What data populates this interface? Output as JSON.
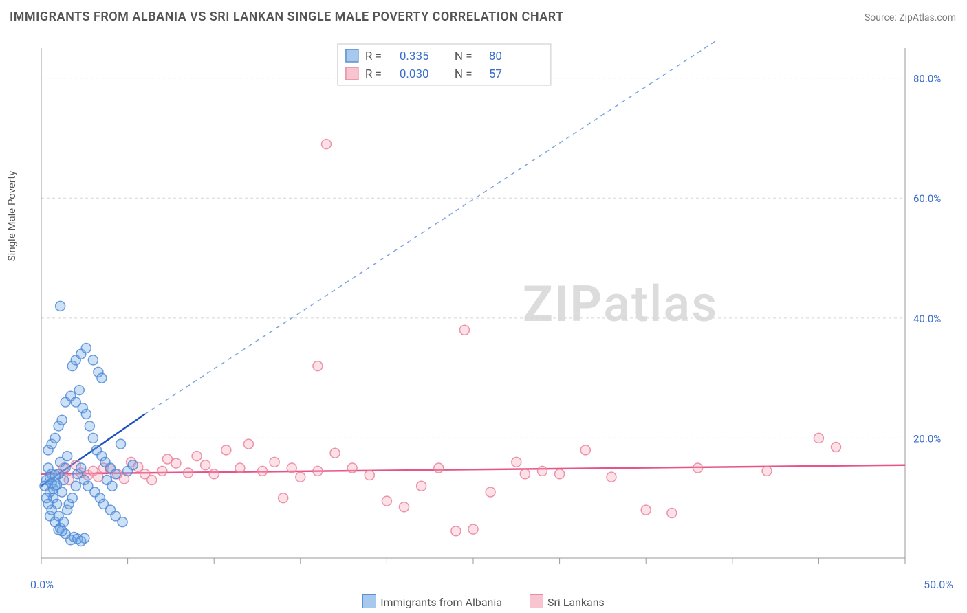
{
  "title": "IMMIGRANTS FROM ALBANIA VS SRI LANKAN SINGLE MALE POVERTY CORRELATION CHART",
  "source": "Source: ZipAtlas.com",
  "ylabel": "Single Male Poverty",
  "watermark": {
    "zip": "ZIP",
    "atlas": "atlas"
  },
  "chart": {
    "type": "scatter",
    "xlim": [
      0,
      50
    ],
    "ylim": [
      0,
      85
    ],
    "yticks": [
      20,
      40,
      60,
      80
    ],
    "ytick_labels": [
      "20.0%",
      "40.0%",
      "60.0%",
      "80.0%"
    ],
    "xticks": [
      0,
      5,
      10,
      15,
      20,
      25,
      30,
      35,
      40,
      45,
      50
    ],
    "xcorner_min": "0.0%",
    "xcorner_max": "50.0%",
    "marker_r": 7,
    "background_color": "#ffffff",
    "grid_color": "#d5d5d5",
    "series_a": {
      "label": "Immigrants from Albania",
      "R": "0.335",
      "N": "80",
      "color_fill": "#6fa8e6",
      "color_stroke": "#4a85d6",
      "trend_color": "#1b53b8",
      "trend": {
        "x1": 0,
        "y1": 12,
        "x2": 6,
        "y2": 24,
        "ext_x2": 40,
        "ext_y2": 88
      },
      "points": [
        [
          0.3,
          13
        ],
        [
          0.5,
          11
        ],
        [
          0.4,
          15
        ],
        [
          0.6,
          14
        ],
        [
          0.8,
          12
        ],
        [
          1.0,
          14
        ],
        [
          1.1,
          16
        ],
        [
          0.7,
          10
        ],
        [
          0.9,
          9
        ],
        [
          1.2,
          11
        ],
        [
          1.3,
          13
        ],
        [
          1.4,
          15
        ],
        [
          1.5,
          17
        ],
        [
          0.5,
          7
        ],
        [
          0.6,
          8
        ],
        [
          0.8,
          6
        ],
        [
          1.0,
          7
        ],
        [
          1.1,
          5
        ],
        [
          1.3,
          6
        ],
        [
          1.5,
          8
        ],
        [
          1.6,
          9
        ],
        [
          1.8,
          10
        ],
        [
          2.0,
          12
        ],
        [
          2.1,
          14
        ],
        [
          2.3,
          15
        ],
        [
          2.5,
          13
        ],
        [
          0.4,
          18
        ],
        [
          0.6,
          19
        ],
        [
          0.8,
          20
        ],
        [
          1.0,
          22
        ],
        [
          1.2,
          23
        ],
        [
          1.4,
          26
        ],
        [
          1.7,
          27
        ],
        [
          2.0,
          26
        ],
        [
          2.2,
          28
        ],
        [
          2.4,
          25
        ],
        [
          2.6,
          24
        ],
        [
          2.8,
          22
        ],
        [
          3.0,
          20
        ],
        [
          3.2,
          18
        ],
        [
          3.5,
          17
        ],
        [
          3.7,
          16
        ],
        [
          4.0,
          15
        ],
        [
          4.3,
          14
        ],
        [
          4.6,
          19
        ],
        [
          5.0,
          14.5
        ],
        [
          5.3,
          15.5
        ],
        [
          2.7,
          12
        ],
        [
          3.1,
          11
        ],
        [
          3.4,
          10
        ],
        [
          3.6,
          9
        ],
        [
          4.0,
          8
        ],
        [
          4.3,
          7
        ],
        [
          4.7,
          6
        ],
        [
          1.7,
          3
        ],
        [
          1.9,
          3.5
        ],
        [
          2.1,
          3.2
        ],
        [
          2.3,
          2.8
        ],
        [
          2.5,
          3.3
        ],
        [
          1.4,
          4
        ],
        [
          1.2,
          4.5
        ],
        [
          1.0,
          4.7
        ],
        [
          1.8,
          32
        ],
        [
          2.0,
          33
        ],
        [
          2.3,
          34
        ],
        [
          2.6,
          35
        ],
        [
          3.0,
          33
        ],
        [
          3.3,
          31
        ],
        [
          3.5,
          30
        ],
        [
          1.1,
          42
        ],
        [
          3.8,
          13
        ],
        [
          4.1,
          12
        ],
        [
          0.2,
          12
        ],
        [
          0.3,
          10
        ],
        [
          0.4,
          9
        ],
        [
          0.5,
          13.5
        ],
        [
          0.6,
          12.5
        ],
        [
          0.7,
          11.5
        ],
        [
          0.8,
          13.8
        ],
        [
          0.9,
          12.2
        ]
      ]
    },
    "series_b": {
      "label": "Sri Lankans",
      "R": "0.030",
      "N": "57",
      "color_fill": "#f5a8bb",
      "color_stroke": "#e77a97",
      "trend_color": "#e6558a",
      "trend": {
        "x1": 0,
        "y1": 14,
        "x2": 50,
        "y2": 15.5
      },
      "points": [
        [
          1.0,
          14
        ],
        [
          1.3,
          15
        ],
        [
          1.6,
          13
        ],
        [
          2.0,
          15.5
        ],
        [
          2.3,
          14.2
        ],
        [
          2.7,
          13.8
        ],
        [
          3.0,
          14.5
        ],
        [
          3.3,
          13.5
        ],
        [
          3.6,
          15
        ],
        [
          4.0,
          14.8
        ],
        [
          4.4,
          14
        ],
        [
          4.8,
          13.2
        ],
        [
          5.2,
          16
        ],
        [
          5.6,
          15.2
        ],
        [
          6.0,
          14
        ],
        [
          6.4,
          13
        ],
        [
          7.0,
          14.5
        ],
        [
          7.3,
          16.5
        ],
        [
          7.8,
          15.8
        ],
        [
          8.5,
          14.2
        ],
        [
          9.0,
          17
        ],
        [
          9.5,
          15.5
        ],
        [
          10.0,
          14
        ],
        [
          10.7,
          18
        ],
        [
          11.5,
          15
        ],
        [
          12.0,
          19
        ],
        [
          12.8,
          14.5
        ],
        [
          13.5,
          16
        ],
        [
          14.5,
          15
        ],
        [
          15.0,
          13.5
        ],
        [
          16.0,
          14.5
        ],
        [
          17.0,
          17.5
        ],
        [
          18.0,
          15
        ],
        [
          19.0,
          13.8
        ],
        [
          20.0,
          9.5
        ],
        [
          21.0,
          8.5
        ],
        [
          22.0,
          12
        ],
        [
          23.0,
          15
        ],
        [
          24.0,
          4.5
        ],
        [
          25.0,
          4.8
        ],
        [
          26.0,
          11
        ],
        [
          27.5,
          16
        ],
        [
          28.0,
          14
        ],
        [
          29.0,
          14.5
        ],
        [
          30.0,
          14
        ],
        [
          31.5,
          18
        ],
        [
          33.0,
          13.5
        ],
        [
          35.0,
          8
        ],
        [
          36.5,
          7.5
        ],
        [
          38.0,
          15
        ],
        [
          42.0,
          14.5
        ],
        [
          45.0,
          20
        ],
        [
          46.0,
          18.5
        ],
        [
          16.5,
          69
        ],
        [
          16.0,
          32
        ],
        [
          24.5,
          38
        ],
        [
          14.0,
          10
        ]
      ]
    }
  },
  "legend_top": {
    "R_label": "R  =",
    "N_label": "N  ="
  },
  "xlegend": {
    "a": "Immigrants from Albania",
    "b": "Sri Lankans"
  }
}
